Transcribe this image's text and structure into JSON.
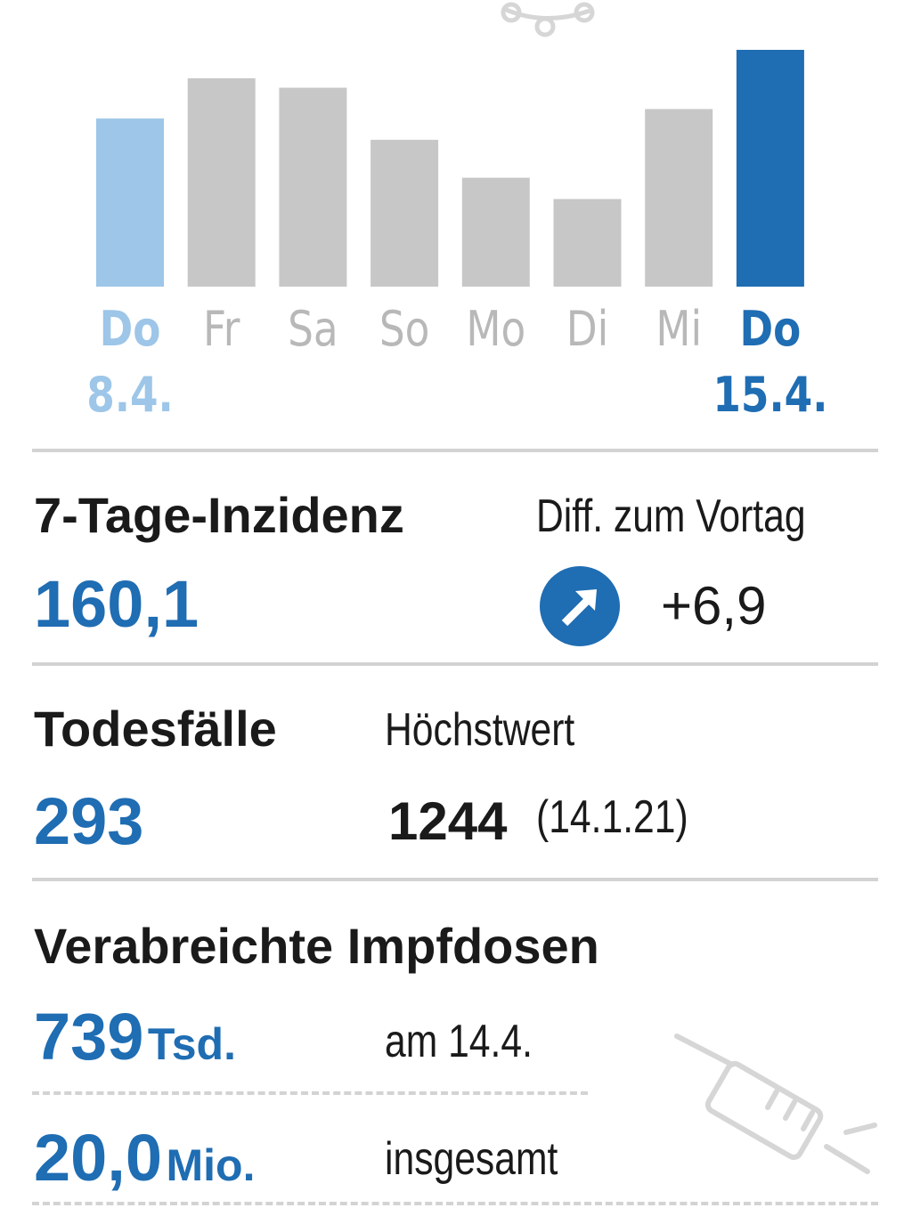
{
  "colors": {
    "accent": "#1f6db3",
    "light_accent": "#9dc6e8",
    "bar_gray": "#c7c7c7",
    "rule_gray": "#d3d3d3"
  },
  "chart_data": {
    "type": "bar",
    "categories": [
      "Do",
      "Fr",
      "Sa",
      "So",
      "Mo",
      "Di",
      "Mi",
      "Do"
    ],
    "date_labels": [
      "8.4.",
      "",
      "",
      "",
      "",
      "",
      "",
      "15.4."
    ],
    "values": [
      0.71,
      0.88,
      0.84,
      0.62,
      0.46,
      0.37,
      0.75,
      1.0
    ],
    "value_note": "relative heights, no axis printed",
    "highlight": {
      "first": "light_accent",
      "last": "accent"
    },
    "title": "",
    "xlabel": "",
    "ylabel": ""
  },
  "incidence": {
    "label": "7-Tage-Inzidenz",
    "value": "160,1",
    "diff_label": "Diff. zum Vortag",
    "diff_value": "+6,9",
    "diff_icon": "arrow-up-right-icon"
  },
  "deaths": {
    "label": "Todesfälle",
    "value": "293",
    "max_label": "Höchstwert",
    "max_value": "1244",
    "max_date": "(14.1.21)"
  },
  "vaccinations": {
    "label": "Verabreichte Impfdosen",
    "daily_value": "739",
    "daily_unit": "Tsd.",
    "daily_label": "am 14.4.",
    "total_value": "20,0",
    "total_unit": "Mio.",
    "total_label": "insgesamt",
    "icon": "syringe-icon"
  },
  "top_icon": "virus-icon"
}
